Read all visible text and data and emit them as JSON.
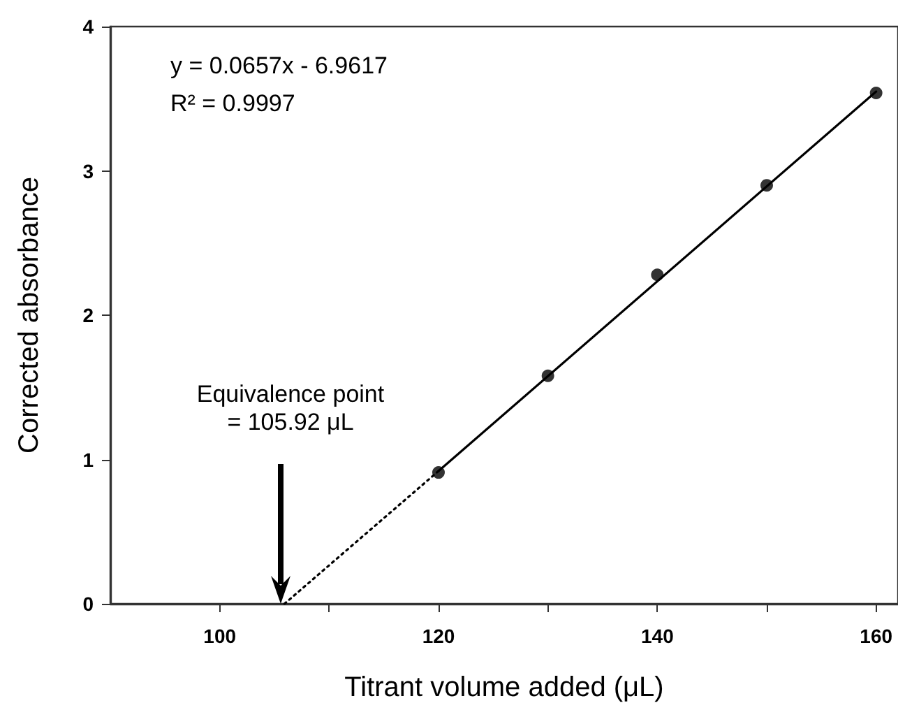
{
  "chart_data": {
    "type": "scatter",
    "xlabel": "Titrant volume added (μL)",
    "ylabel": "Corrected absorbance",
    "xlim": [
      90,
      162
    ],
    "ylim": [
      0,
      4
    ],
    "xticks": [
      100,
      {
        "value": 110,
        "label": null
      },
      120,
      {
        "value": 130,
        "label": null
      },
      140,
      {
        "value": 150,
        "label": null
      },
      160
    ],
    "yticks": [
      0,
      1,
      2,
      3,
      4
    ],
    "grid": false,
    "series": [
      {
        "color": "#000000",
        "marker": "circle",
        "x": [
          120,
          130,
          140,
          150,
          160
        ],
        "values": [
          0.91,
          1.58,
          2.28,
          2.9,
          3.54
        ]
      },
      {
        "type": "line",
        "color": "#000000",
        "marker": "none",
        "line_style": "solid",
        "x": [
          120,
          160
        ],
        "values": [
          0.92,
          3.55
        ]
      },
      {
        "type": "line",
        "color": "#000000",
        "marker": "none",
        "line_style": "dotted",
        "x": [
          105.92,
          120
        ],
        "values": [
          0,
          0.92
        ]
      }
    ],
    "annotations": [
      "y = 0.0657x - 6.9617",
      "R² = 0.9997",
      "Equivalence point\n= 105.92 μL"
    ]
  }
}
